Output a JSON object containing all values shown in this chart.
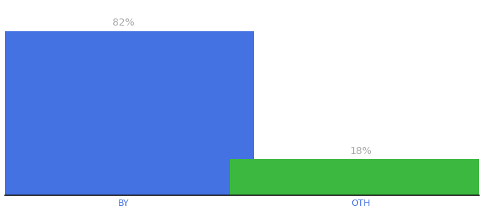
{
  "categories": [
    "BY",
    "OTH"
  ],
  "values": [
    82,
    18
  ],
  "bar_colors": [
    "#4472e3",
    "#3cb840"
  ],
  "value_labels": [
    "82%",
    "18%"
  ],
  "label_color": "#aaaaaa",
  "background_color": "#ffffff",
  "ylim": [
    0,
    95
  ],
  "bar_width": 0.55,
  "label_fontsize": 10,
  "tick_fontsize": 9,
  "tick_color": "#4472e3",
  "x_positions": [
    0.25,
    0.75
  ]
}
